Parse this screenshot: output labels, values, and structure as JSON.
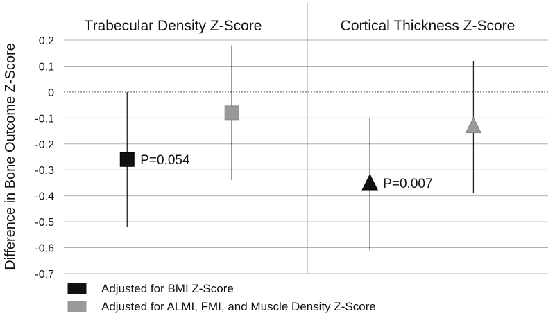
{
  "chart_data": {
    "type": "scatter",
    "ylabel": "Difference in Bone Outcome Z-Score",
    "ylim": [
      -0.7,
      0.2
    ],
    "yticks": [
      "0.2",
      "0.1",
      "0",
      "-0.1",
      "-0.2",
      "-0.3",
      "-0.4",
      "-0.5",
      "-0.6",
      "-0.7"
    ],
    "grid": true,
    "legend_placement": "bottom-left",
    "panels": [
      {
        "title": "Trabecular Density Z-Score",
        "points": [
          {
            "series": "Adjusted for BMI Z-Score",
            "marker": "square",
            "value": -0.26,
            "ci_low": -0.52,
            "ci_high": 0.0,
            "p_label": "P=0.054"
          },
          {
            "series": "Adjusted for ALMI, FMI, and Muscle Density Z-Score",
            "marker": "square",
            "value": -0.08,
            "ci_low": -0.34,
            "ci_high": 0.18,
            "p_label": ""
          }
        ]
      },
      {
        "title": "Cortical Thickness Z-Score",
        "points": [
          {
            "series": "Adjusted for BMI Z-Score",
            "marker": "triangle",
            "value": -0.35,
            "ci_low": -0.61,
            "ci_high": -0.1,
            "p_label": "P=0.007"
          },
          {
            "series": "Adjusted for ALMI, FMI, and Muscle Density Z-Score",
            "marker": "triangle",
            "value": -0.13,
            "ci_low": -0.39,
            "ci_high": 0.12,
            "p_label": ""
          }
        ]
      }
    ],
    "series": [
      {
        "name": "Adjusted for BMI Z-Score",
        "color": "#111111"
      },
      {
        "name": "Adjusted for ALMI, FMI, and Muscle Density Z-Score",
        "color": "#999999"
      }
    ]
  }
}
